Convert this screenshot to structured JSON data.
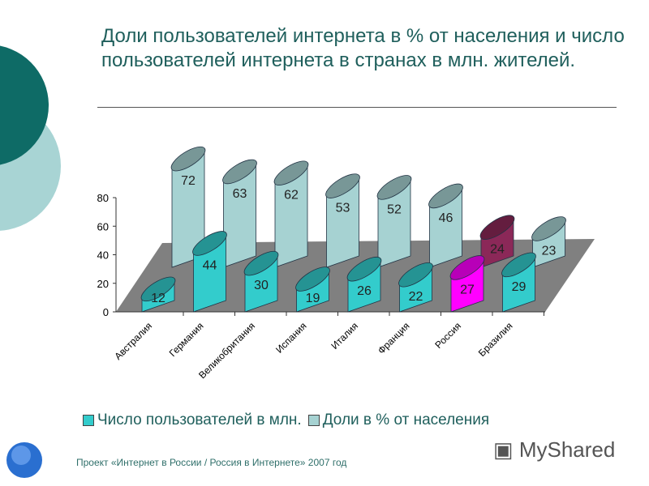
{
  "title": "Доли пользователей интернета в % от населения и число пользователей интернета в странах в млн. жителей.",
  "chart_data": {
    "type": "bar",
    "subtype": "3d-cylinder",
    "categories": [
      "Австралия",
      "Германия",
      "Великобритания",
      "Испания",
      "Италия",
      "Франция",
      "Россия",
      "Бразилия"
    ],
    "series": [
      {
        "name": "Число пользователей в млн.",
        "values": [
          12,
          44,
          30,
          19,
          26,
          22,
          27,
          29
        ],
        "color": "#33cccc"
      },
      {
        "name": "Доли в % от населения",
        "values": [
          72,
          63,
          62,
          53,
          52,
          46,
          24,
          23
        ],
        "color": "#a6d2d2"
      }
    ],
    "highlight": {
      "category": "Россия",
      "front_color": "#ff00ff",
      "back_color": "#8b2858"
    },
    "yticks": [
      0,
      20,
      40,
      60,
      80
    ],
    "ylim": [
      0,
      80
    ],
    "legend": "bottom"
  },
  "footer": "Проект «Интернет в России / Россия в Интернете»  2007 год",
  "watermark": "MyShared"
}
